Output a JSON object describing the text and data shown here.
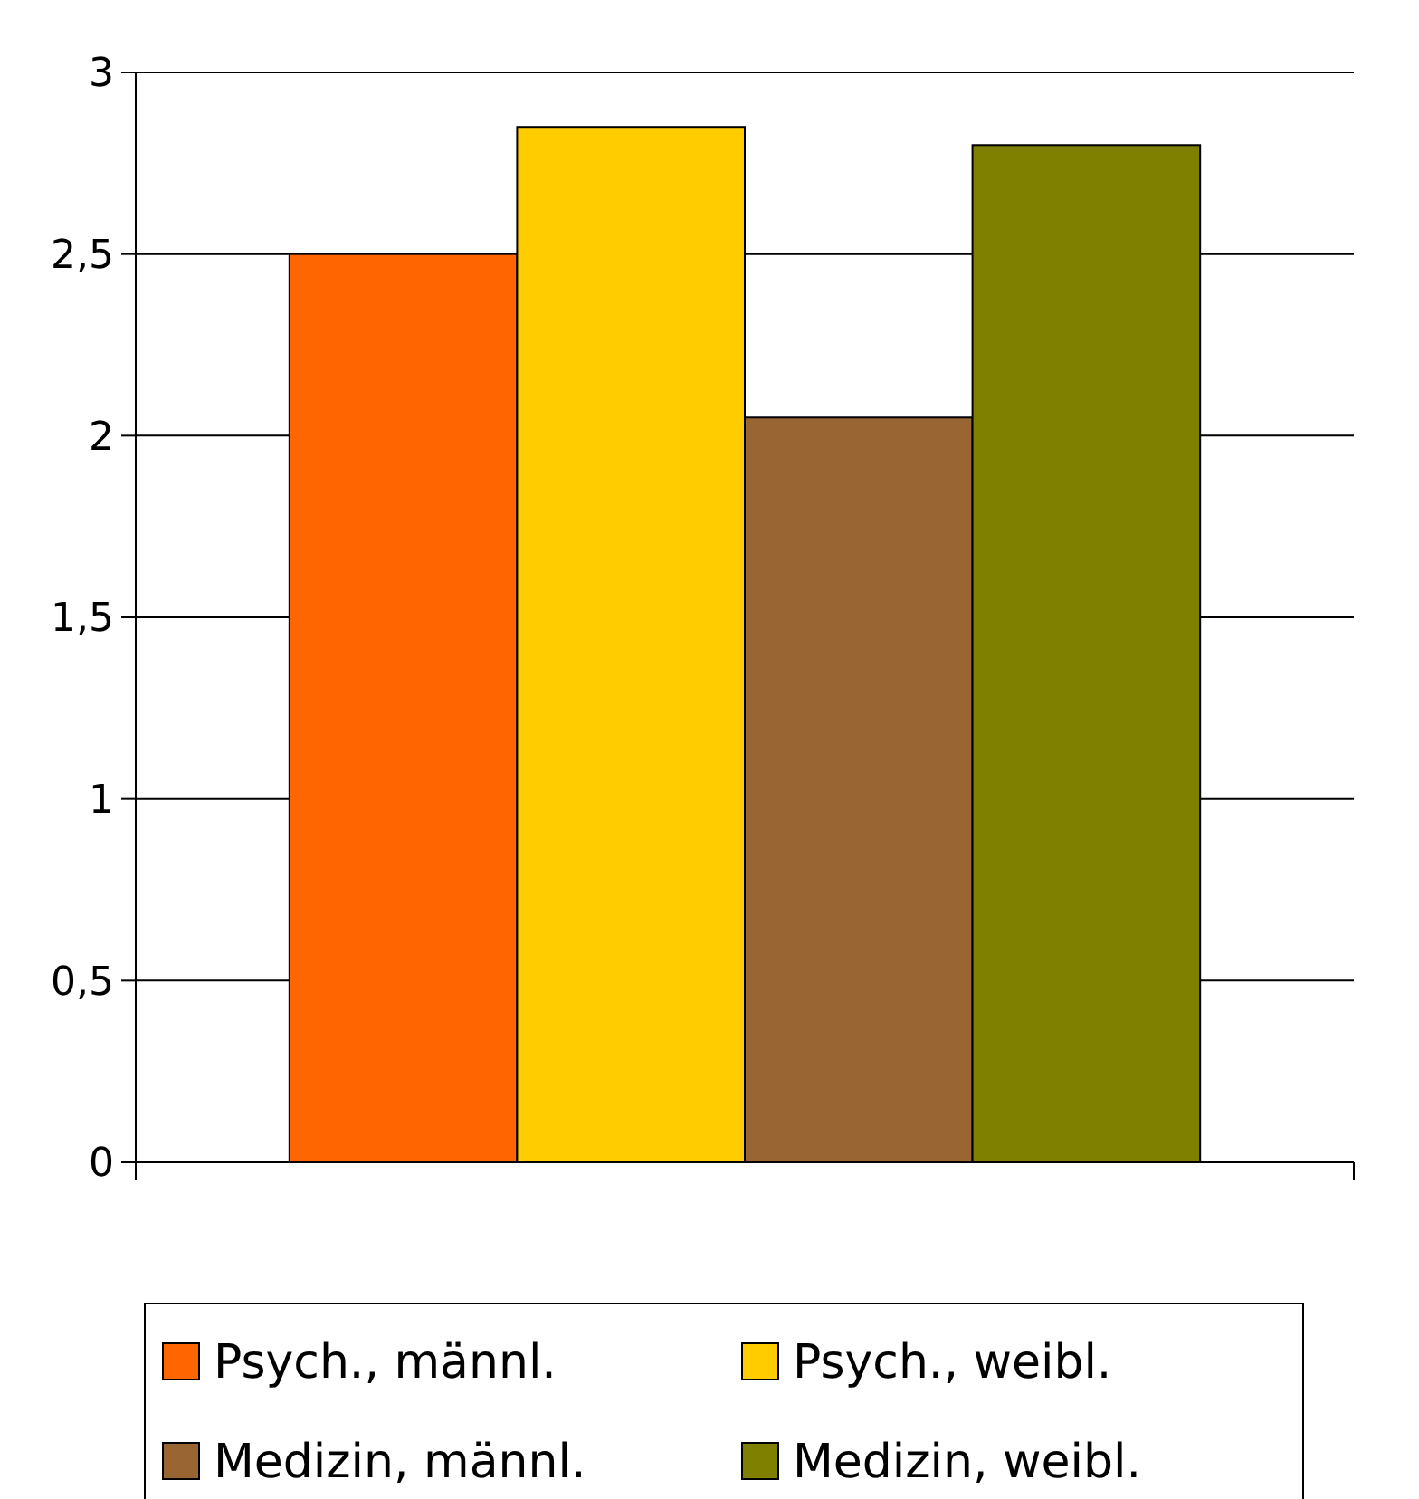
{
  "chart_data": {
    "type": "bar",
    "categories": [
      null
    ],
    "series": [
      {
        "name": "Psych., männl.",
        "color": "#ff6600",
        "values": [
          2.5
        ]
      },
      {
        "name": "Psych., weibl.",
        "color": "#ffcc00",
        "values": [
          2.85
        ]
      },
      {
        "name": "Medizin, männl.",
        "color": "#996633",
        "values": [
          2.05
        ]
      },
      {
        "name": "Medizin, weibl.",
        "color": "#808000",
        "values": [
          2.8
        ]
      }
    ],
    "ylim": [
      0,
      3
    ],
    "yticks": [
      0,
      {
        "value": 0.5,
        "label": "0,5"
      },
      1,
      {
        "value": 1.5,
        "label": "1,5"
      },
      2,
      {
        "value": 2.5,
        "label": "2,5"
      },
      3
    ],
    "grid": "y",
    "legend": "bottom"
  }
}
